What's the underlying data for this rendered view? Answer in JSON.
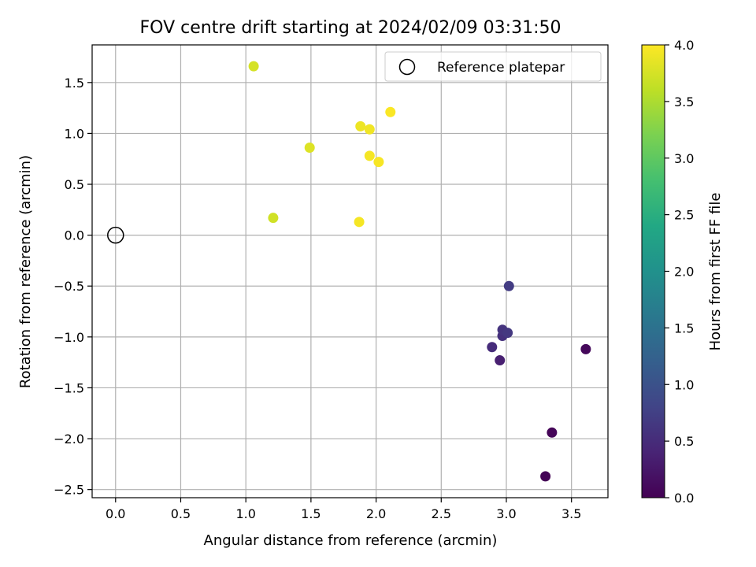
{
  "chart_data": {
    "type": "scatter",
    "title": "FOV centre drift starting at 2024/02/09 03:31:50",
    "xlabel": "Angular distance from reference (arcmin)",
    "ylabel": "Rotation from reference (arcmin)",
    "xlim": [
      -0.18,
      3.78
    ],
    "ylim": [
      -2.58,
      1.87
    ],
    "xticks": [
      0.0,
      0.5,
      1.0,
      1.5,
      2.0,
      2.5,
      3.0,
      3.5
    ],
    "xtick_labels": [
      "0.0",
      "0.5",
      "1.0",
      "1.5",
      "2.0",
      "2.5",
      "3.0",
      "3.5"
    ],
    "yticks": [
      1.5,
      1.0,
      0.5,
      0.0,
      -0.5,
      -1.0,
      -1.5,
      -2.0,
      -2.5
    ],
    "ytick_labels": [
      "1.5",
      "1.0",
      "0.5",
      "0.0",
      "−0.5",
      "−1.0",
      "−1.5",
      "−2.0",
      "−2.5"
    ],
    "grid": true,
    "colormap": "viridis",
    "reference": {
      "x": 0.0,
      "y": 0.0,
      "label": "Reference platepar"
    },
    "legend": {
      "position": "top-right",
      "entries": [
        "Reference platepar"
      ]
    },
    "colorbar": {
      "label": "Hours from first FF file",
      "range": [
        0.0,
        4.0
      ],
      "ticks": [
        0.0,
        0.5,
        1.0,
        1.5,
        2.0,
        2.5,
        3.0,
        3.5,
        4.0
      ],
      "tick_labels": [
        "0.0",
        "0.5",
        "1.0",
        "1.5",
        "2.0",
        "2.5",
        "3.0",
        "3.5",
        "4.0"
      ]
    },
    "points": [
      {
        "x": 3.3,
        "y": -2.37,
        "hours": 0.02
      },
      {
        "x": 3.35,
        "y": -1.94,
        "hours": 0.05
      },
      {
        "x": 3.61,
        "y": -1.12,
        "hours": 0.08
      },
      {
        "x": 2.95,
        "y": -1.23,
        "hours": 0.35
      },
      {
        "x": 2.89,
        "y": -1.1,
        "hours": 0.5
      },
      {
        "x": 2.97,
        "y": -0.99,
        "hours": 0.55
      },
      {
        "x": 2.97,
        "y": -0.93,
        "hours": 0.6
      },
      {
        "x": 3.01,
        "y": -0.96,
        "hours": 0.65
      },
      {
        "x": 3.02,
        "y": -0.5,
        "hours": 0.7
      },
      {
        "x": 1.06,
        "y": 1.66,
        "hours": 3.75
      },
      {
        "x": 1.21,
        "y": 0.17,
        "hours": 3.72
      },
      {
        "x": 1.49,
        "y": 0.86,
        "hours": 3.8
      },
      {
        "x": 1.87,
        "y": 0.13,
        "hours": 3.95
      },
      {
        "x": 1.88,
        "y": 1.07,
        "hours": 3.9
      },
      {
        "x": 1.95,
        "y": 1.04,
        "hours": 3.92
      },
      {
        "x": 1.95,
        "y": 0.78,
        "hours": 3.95
      },
      {
        "x": 2.02,
        "y": 0.72,
        "hours": 3.96
      },
      {
        "x": 2.11,
        "y": 1.21,
        "hours": 3.98
      }
    ]
  }
}
